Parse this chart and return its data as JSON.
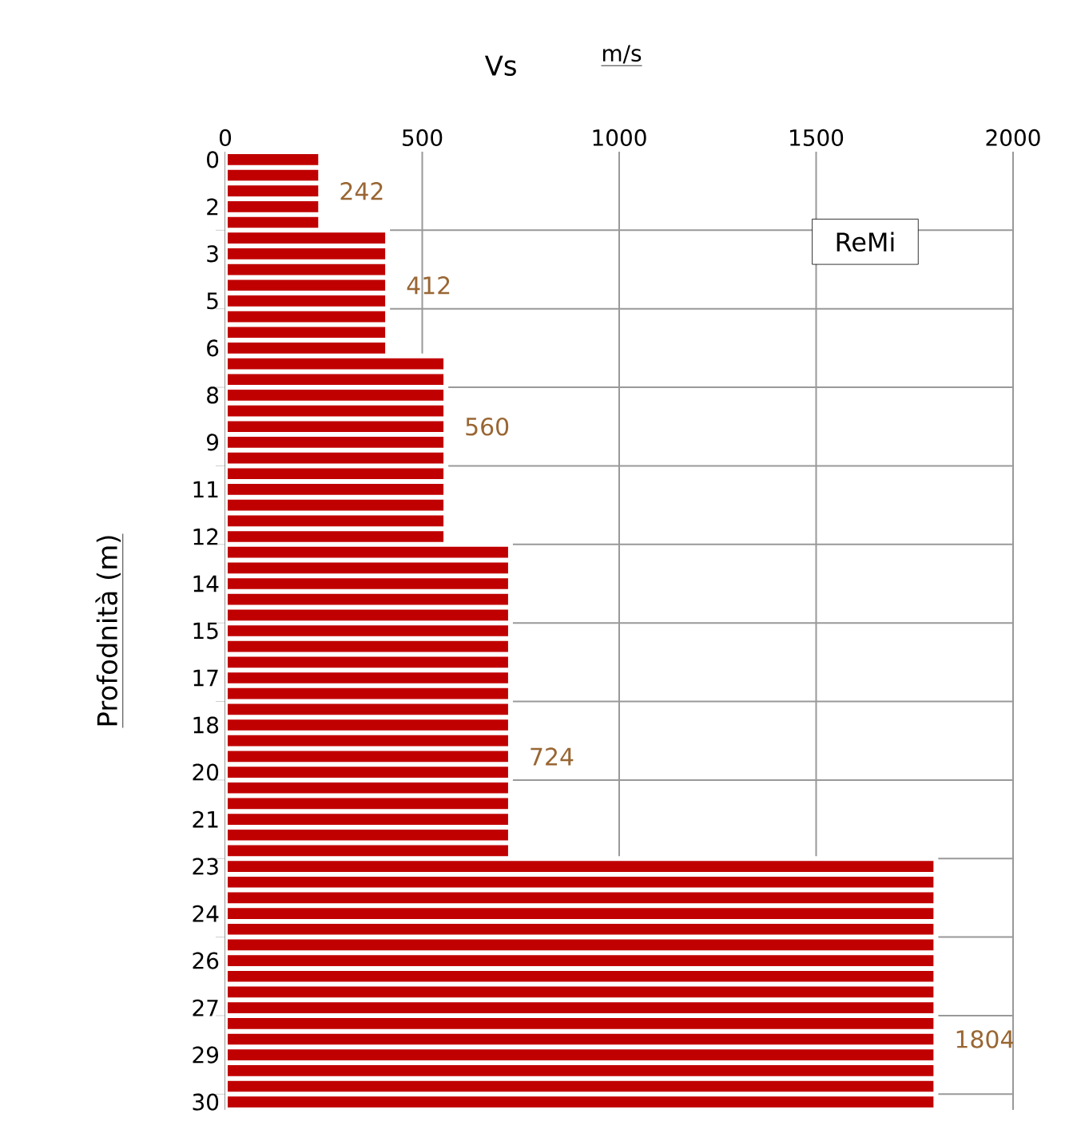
{
  "chart_data": {
    "type": "bar",
    "orientation": "horizontal",
    "xlabel": "Vs",
    "ylabel": "Profodnità (m)",
    "annotations": [
      "m/s"
    ],
    "categories": [
      "0",
      null,
      null,
      "2",
      null,
      null,
      "3",
      null,
      null,
      "5",
      null,
      null,
      "6",
      null,
      null,
      "8",
      null,
      null,
      "9",
      null,
      null,
      "11",
      null,
      null,
      "12",
      null,
      null,
      "14",
      null,
      null,
      "15",
      null,
      null,
      "17",
      null,
      null,
      "18",
      null,
      null,
      "20",
      null,
      null,
      "21",
      null,
      null,
      "23",
      null,
      null,
      "24",
      null,
      null,
      "26",
      null,
      null,
      "27",
      null,
      null,
      "29",
      null,
      null,
      "30"
    ],
    "series": [
      {
        "name": "ReMi",
        "color": "#c00000",
        "values": [
          242,
          242,
          242,
          242,
          242,
          412,
          412,
          412,
          412,
          412,
          412,
          412,
          412,
          560,
          560,
          560,
          560,
          560,
          560,
          560,
          560,
          560,
          560,
          560,
          560,
          724,
          724,
          724,
          724,
          724,
          724,
          724,
          724,
          724,
          724,
          724,
          724,
          724,
          724,
          724,
          724,
          724,
          724,
          724,
          724,
          1804,
          1804,
          1804,
          1804,
          1804,
          1804,
          1804,
          1804,
          1804,
          1804,
          1804,
          1804,
          1804,
          1804,
          1804,
          1804
        ],
        "value_labels": [
          null,
          null,
          "242",
          null,
          null,
          null,
          null,
          null,
          "412",
          null,
          null,
          null,
          null,
          null,
          null,
          null,
          null,
          "560",
          null,
          null,
          null,
          null,
          null,
          null,
          null,
          null,
          null,
          null,
          null,
          null,
          null,
          null,
          null,
          null,
          null,
          null,
          null,
          null,
          "724",
          null,
          null,
          null,
          null,
          null,
          null,
          null,
          null,
          null,
          null,
          null,
          null,
          null,
          null,
          null,
          null,
          null,
          "1804",
          null,
          null,
          null,
          null
        ]
      }
    ],
    "xlim": [
      0,
      2000
    ],
    "xticks": [
      0,
      500,
      1000,
      1500,
      2000
    ],
    "grid": true,
    "legend": "top right"
  }
}
